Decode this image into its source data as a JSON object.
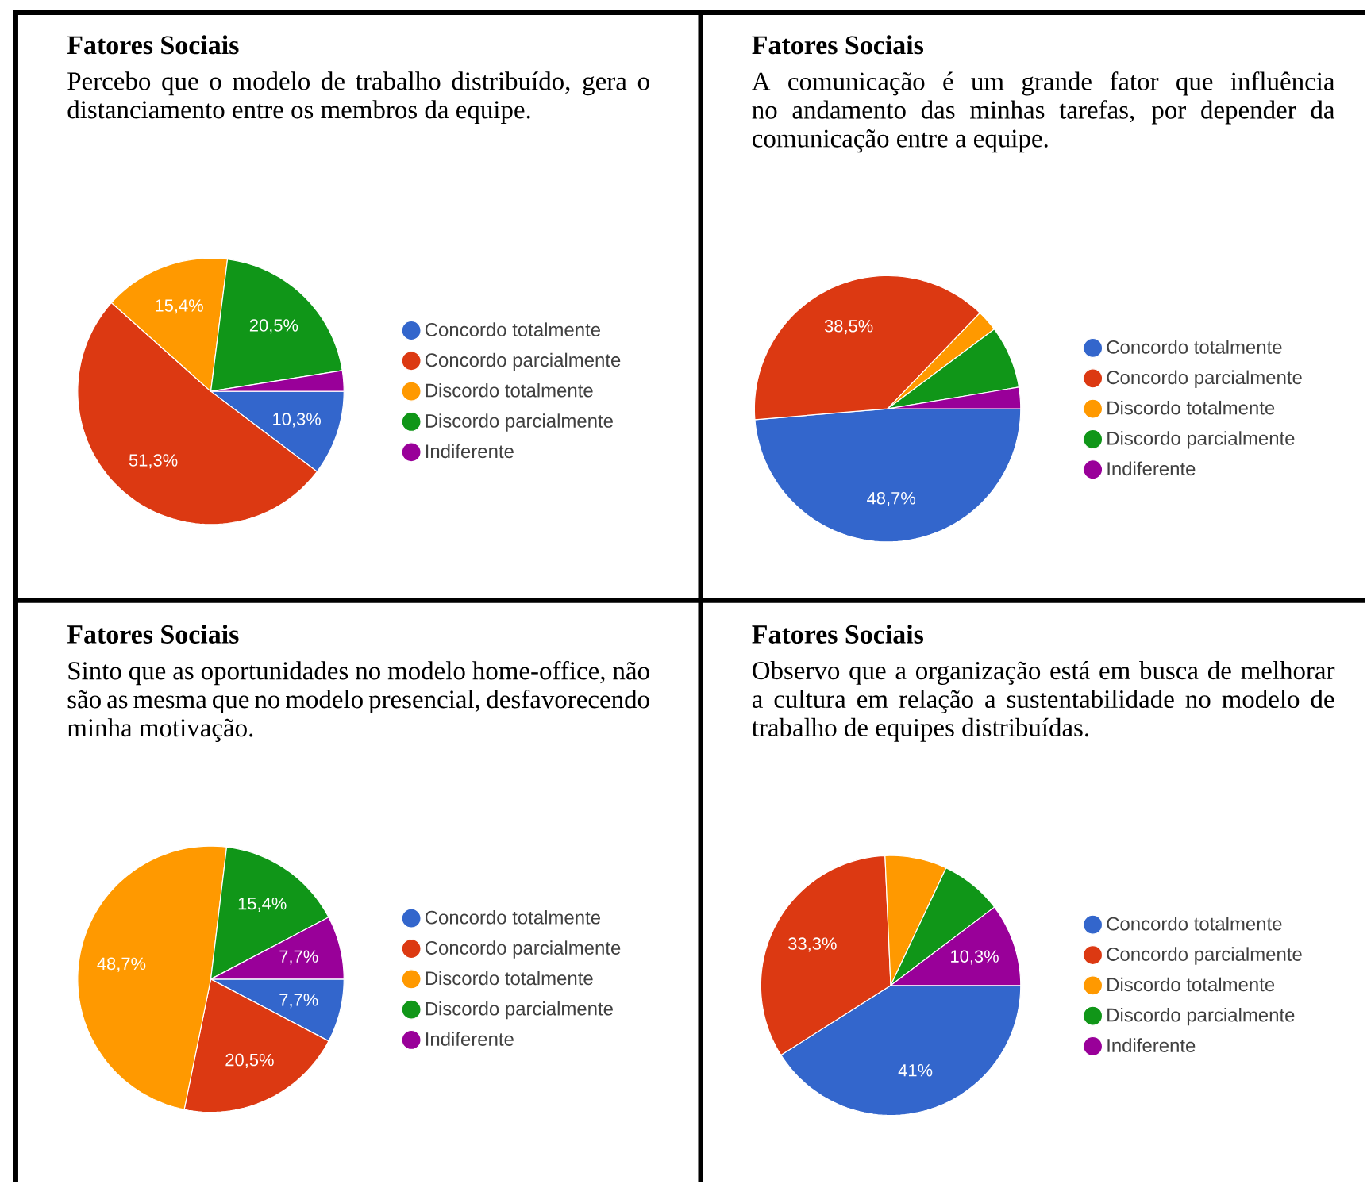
{
  "chart_data": [
    {
      "type": "pie",
      "title": "Fatores Sociais",
      "subtitle": "Percebo que o modelo de trabalho distribuído, gera o distanciamento entre os membros da equipe.",
      "categories": [
        "Concordo totalmente",
        "Concordo parcialmente",
        "Discordo totalmente",
        "Discordo parcialmente",
        "Indiferente"
      ],
      "values": [
        10.3,
        51.3,
        15.4,
        20.5,
        2.5
      ],
      "value_labels": [
        "10,3%",
        "51,3%",
        "15,4%",
        "20,5%",
        null
      ],
      "colors": [
        "#3366cc",
        "#dc3912",
        "#ff9900",
        "#109618",
        "#990099"
      ],
      "legend": "right"
    },
    {
      "type": "pie",
      "title": "Fatores Sociais",
      "subtitle": "A comunicação é um grande fator que influência no andamento das minhas tarefas, por depender da comunicação entre a equipe.",
      "categories": [
        "Concordo totalmente",
        "Concordo parcialmente",
        "Discordo totalmente",
        "Discordo parcialmente",
        "Indiferente"
      ],
      "values": [
        48.7,
        38.5,
        2.6,
        7.6,
        2.6
      ],
      "value_labels": [
        "48,7%",
        "38,5%",
        null,
        null,
        null
      ],
      "colors": [
        "#3366cc",
        "#dc3912",
        "#ff9900",
        "#109618",
        "#990099"
      ],
      "legend": "right"
    },
    {
      "type": "pie",
      "title": "Fatores Sociais",
      "subtitle": "Sinto que as oportunidades no modelo home-office, não são as mesma que no modelo presencial, desfavorecendo minha motivação.",
      "categories": [
        "Concordo totalmente",
        "Concordo parcialmente",
        "Discordo totalmente",
        "Discordo parcialmente",
        "Indiferente"
      ],
      "values": [
        7.7,
        20.5,
        48.7,
        15.4,
        7.7
      ],
      "value_labels": [
        "7,7%",
        "20,5%",
        "48,7%",
        "15,4%",
        "7,7%"
      ],
      "colors": [
        "#3366cc",
        "#dc3912",
        "#ff9900",
        "#109618",
        "#990099"
      ],
      "legend": "right"
    },
    {
      "type": "pie",
      "title": "Fatores Sociais",
      "subtitle": "Observo que a organização está em busca de melhorar a cultura em relação a sustentabilidade no modelo de trabalho de equipes distribuídas.",
      "categories": [
        "Concordo totalmente",
        "Concordo parcialmente",
        "Discordo totalmente",
        "Discordo parcialmente",
        "Indiferente"
      ],
      "values": [
        41,
        33.3,
        7.7,
        7.7,
        10.3
      ],
      "value_labels": [
        "41%",
        "33,3%",
        null,
        null,
        "10,3%"
      ],
      "colors": [
        "#3366cc",
        "#dc3912",
        "#ff9900",
        "#109618",
        "#990099"
      ],
      "legend": "right"
    }
  ]
}
